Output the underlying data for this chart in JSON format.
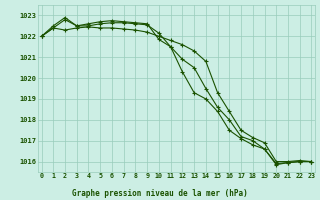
{
  "x": [
    0,
    1,
    2,
    3,
    4,
    5,
    6,
    7,
    8,
    9,
    10,
    11,
    12,
    13,
    14,
    15,
    16,
    17,
    18,
    19,
    20,
    21,
    22,
    23
  ],
  "line1": [
    1022.0,
    1022.4,
    1022.8,
    1022.5,
    1022.6,
    1022.7,
    1022.75,
    1022.7,
    1022.65,
    1022.6,
    1021.85,
    1021.5,
    1020.9,
    1020.5,
    1019.5,
    1018.6,
    1018.0,
    1017.2,
    1017.0,
    1016.6,
    1015.9,
    1015.95,
    1016.0,
    1016.0
  ],
  "line2": [
    1022.0,
    1022.5,
    1022.9,
    1022.5,
    1022.5,
    1022.6,
    1022.65,
    1022.65,
    1022.6,
    1022.55,
    1022.15,
    1021.5,
    1020.3,
    1019.3,
    1019.0,
    1018.4,
    1017.5,
    1017.1,
    1016.8,
    1016.6,
    1015.85,
    1015.95,
    1016.0,
    1016.0
  ],
  "line3": [
    1022.0,
    1022.4,
    1022.3,
    1022.4,
    1022.45,
    1022.4,
    1022.4,
    1022.35,
    1022.3,
    1022.2,
    1022.0,
    1021.8,
    1021.6,
    1021.3,
    1020.8,
    1019.3,
    1018.4,
    1017.5,
    1017.15,
    1016.9,
    1016.0,
    1016.0,
    1016.05,
    1016.0
  ],
  "bg_color": "#cceee4",
  "grid_color": "#99ccbb",
  "line_color": "#1a5200",
  "title": "Graphe pression niveau de la mer (hPa)",
  "ylabel_ticks": [
    1016,
    1017,
    1018,
    1019,
    1020,
    1021,
    1022,
    1023
  ],
  "xlabel_ticks": [
    0,
    1,
    2,
    3,
    4,
    5,
    6,
    7,
    8,
    9,
    10,
    11,
    12,
    13,
    14,
    15,
    16,
    17,
    18,
    19,
    20,
    21,
    22,
    23
  ],
  "ylim": [
    1015.5,
    1023.5
  ],
  "xlim": [
    -0.3,
    23.3
  ]
}
